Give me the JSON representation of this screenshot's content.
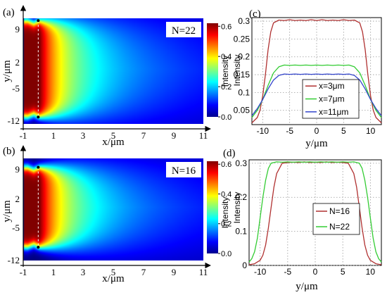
{
  "chart_data": [
    {
      "type": "heatmap",
      "panel_label": "(a)",
      "annotation": "N=22",
      "xlabel": "x/μm",
      "ylabel": "y/μm",
      "x_ticks": [
        "-1",
        "1",
        "3",
        "5",
        "7",
        "9",
        "11"
      ],
      "y_ticks": [
        "9",
        "2",
        "-5",
        "-12"
      ],
      "xlim": [
        -1,
        11
      ],
      "ylim": [
        -12,
        11
      ],
      "colorbar": {
        "label": "Intensity",
        "ticks": [
          "0.0",
          "0.2",
          "0.4",
          "0.6"
        ],
        "range": [
          0,
          0.62
        ]
      },
      "source_half_width": 10.5
    },
    {
      "type": "heatmap",
      "panel_label": "(b)",
      "annotation": "N=16",
      "xlabel": "x/μm",
      "ylabel": "y/μm",
      "x_ticks": [
        "-1",
        "1",
        "3",
        "5",
        "7",
        "9",
        "11"
      ],
      "y_ticks": [
        "9",
        "2",
        "-5",
        "-12"
      ],
      "xlim": [
        -1,
        11
      ],
      "ylim": [
        -12,
        11
      ],
      "colorbar": {
        "label": "Intensity",
        "ticks": [
          "0.0",
          "0.2",
          "0.4",
          "0.6"
        ],
        "range": [
          0,
          0.62
        ]
      },
      "source_half_width": 9
    },
    {
      "type": "line",
      "panel_label": "(c)",
      "xlabel": "y/μm",
      "ylabel": "Intensity",
      "xlim": [
        -12,
        12
      ],
      "ylim": [
        0.01,
        0.31
      ],
      "x_ticks": [
        "-10",
        "-5",
        "0",
        "5",
        "10"
      ],
      "y_ticks": [
        "0.05",
        "0.1",
        "0.15",
        "0.2",
        "0.25",
        "0.3"
      ],
      "grid": true,
      "legend_position": "lower-center",
      "series": [
        {
          "name": "x=3μm",
          "color": "#b03030",
          "x": [
            -12,
            -11,
            -10.5,
            -10,
            -9.5,
            -9,
            -8.5,
            -8,
            -7,
            -6,
            -5,
            -4,
            -3,
            -2,
            -1,
            0,
            1,
            2,
            3,
            4,
            5,
            6,
            7,
            8,
            8.5,
            9,
            9.5,
            10,
            10.5,
            11,
            12
          ],
          "y": [
            0.015,
            0.03,
            0.05,
            0.09,
            0.15,
            0.22,
            0.27,
            0.295,
            0.303,
            0.302,
            0.304,
            0.302,
            0.303,
            0.302,
            0.304,
            0.302,
            0.304,
            0.302,
            0.303,
            0.302,
            0.304,
            0.302,
            0.303,
            0.295,
            0.27,
            0.22,
            0.15,
            0.09,
            0.05,
            0.03,
            0.015
          ]
        },
        {
          "name": "x=7μm",
          "color": "#33cc33",
          "x": [
            -12,
            -11,
            -10,
            -9,
            -8,
            -7,
            -6,
            -5,
            -4,
            -3,
            -2,
            -1,
            0,
            1,
            2,
            3,
            4,
            5,
            6,
            7,
            8,
            9,
            10,
            11,
            12
          ],
          "y": [
            0.03,
            0.05,
            0.08,
            0.12,
            0.155,
            0.172,
            0.177,
            0.176,
            0.177,
            0.176,
            0.177,
            0.176,
            0.177,
            0.176,
            0.177,
            0.176,
            0.177,
            0.176,
            0.177,
            0.172,
            0.155,
            0.12,
            0.08,
            0.05,
            0.03
          ]
        },
        {
          "name": "x=11μm",
          "color": "#3344cc",
          "x": [
            -12,
            -11,
            -10,
            -9,
            -8,
            -7,
            -6,
            -5,
            -4,
            -3,
            -2,
            -1,
            0,
            1,
            2,
            3,
            4,
            5,
            6,
            7,
            8,
            9,
            10,
            11,
            12
          ],
          "y": [
            0.035,
            0.055,
            0.08,
            0.11,
            0.135,
            0.148,
            0.152,
            0.151,
            0.152,
            0.151,
            0.152,
            0.151,
            0.152,
            0.151,
            0.152,
            0.151,
            0.152,
            0.151,
            0.152,
            0.148,
            0.135,
            0.11,
            0.08,
            0.055,
            0.035
          ]
        }
      ]
    },
    {
      "type": "line",
      "panel_label": "(d)",
      "xlabel": "y/μm",
      "ylabel": "Intensity",
      "xlim": [
        -12,
        12
      ],
      "ylim": [
        0,
        0.31
      ],
      "x_ticks": [
        "-10",
        "-5",
        "0",
        "5",
        "10"
      ],
      "y_ticks": [
        "0",
        "0.1",
        "0.2",
        "0.3"
      ],
      "grid": true,
      "legend_position": "lower-center",
      "series": [
        {
          "name": "N=16",
          "color": "#b03030",
          "x": [
            -12,
            -11,
            -10,
            -9.5,
            -9,
            -8.5,
            -8,
            -7.5,
            -7,
            -6,
            -5,
            -4,
            -3,
            -2,
            -1,
            0,
            1,
            2,
            3,
            4,
            5,
            6,
            7,
            7.5,
            8,
            8.5,
            9,
            9.5,
            10,
            11,
            12
          ],
          "y": [
            0.002,
            0.005,
            0.015,
            0.03,
            0.06,
            0.11,
            0.17,
            0.23,
            0.27,
            0.3,
            0.302,
            0.303,
            0.302,
            0.304,
            0.302,
            0.303,
            0.302,
            0.304,
            0.302,
            0.303,
            0.302,
            0.3,
            0.27,
            0.23,
            0.17,
            0.11,
            0.06,
            0.03,
            0.015,
            0.005,
            0.002
          ]
        },
        {
          "name": "N=22",
          "color": "#33cc33",
          "x": [
            -12,
            -11.5,
            -11,
            -10.5,
            -10,
            -9.5,
            -9,
            -8.5,
            -8,
            -7,
            -6,
            -5,
            -4,
            -3,
            -2,
            -1,
            0,
            1,
            2,
            3,
            4,
            5,
            6,
            7,
            8,
            8.5,
            9,
            9.5,
            10,
            10.5,
            11,
            11.5,
            12
          ],
          "y": [
            0.01,
            0.02,
            0.04,
            0.08,
            0.14,
            0.2,
            0.25,
            0.285,
            0.3,
            0.304,
            0.303,
            0.304,
            0.303,
            0.304,
            0.303,
            0.304,
            0.303,
            0.304,
            0.303,
            0.304,
            0.303,
            0.304,
            0.303,
            0.304,
            0.3,
            0.285,
            0.25,
            0.2,
            0.14,
            0.08,
            0.04,
            0.02,
            0.01
          ]
        }
      ]
    }
  ]
}
